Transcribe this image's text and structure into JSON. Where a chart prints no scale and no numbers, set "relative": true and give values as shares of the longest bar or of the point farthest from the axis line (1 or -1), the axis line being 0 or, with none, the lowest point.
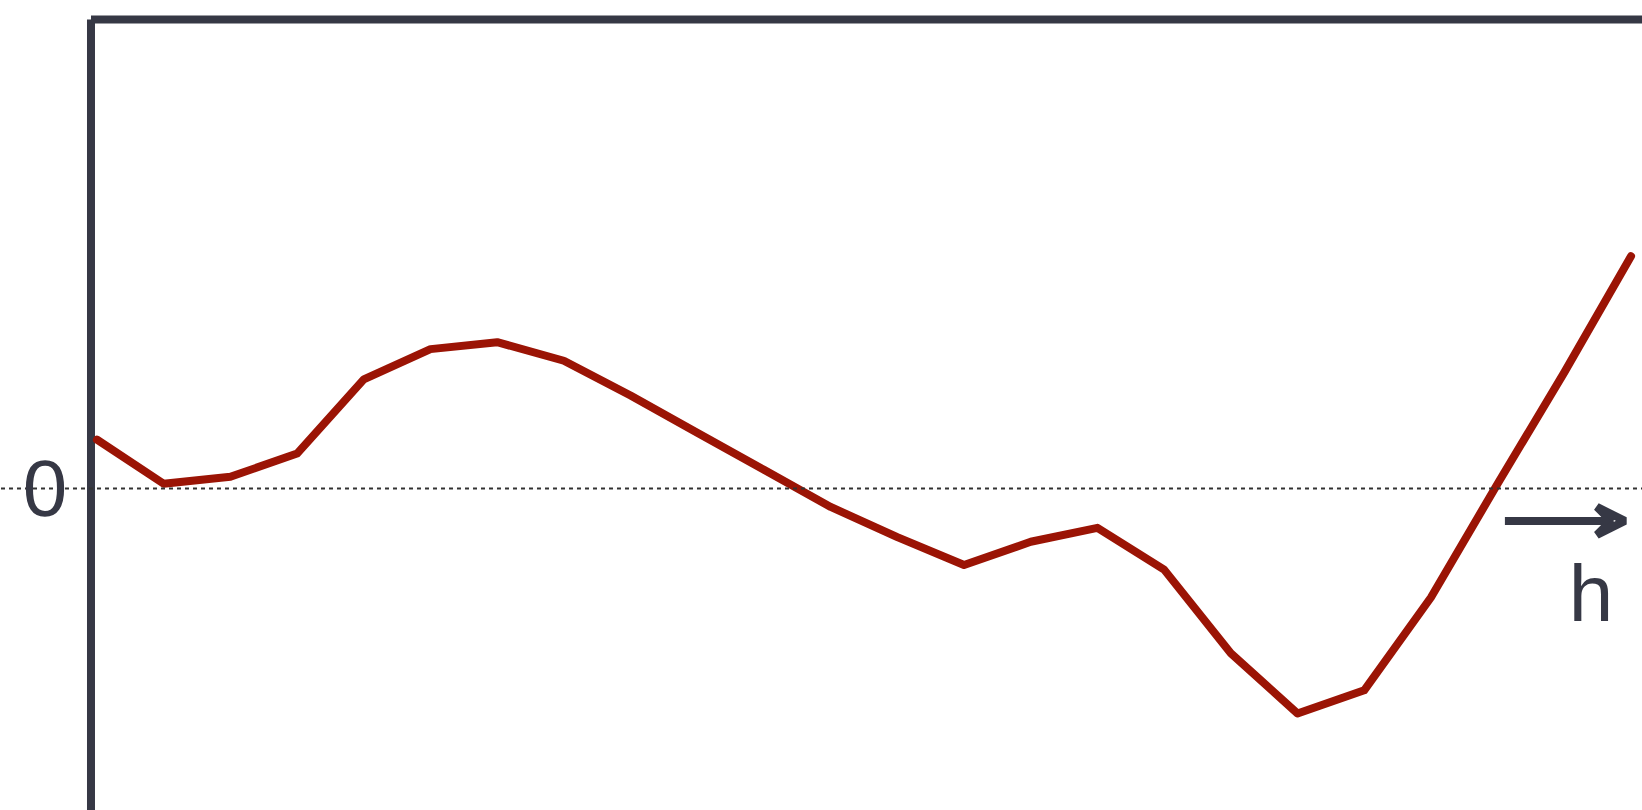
{
  "chart_data": {
    "type": "line",
    "relative": true,
    "xlabel": "h",
    "categories": [
      null,
      null,
      null,
      null,
      null,
      null,
      null,
      null,
      null,
      null,
      null,
      null,
      null,
      null,
      null,
      null,
      null,
      null,
      null,
      null,
      null,
      null,
      null,
      null
    ],
    "series": [
      {
        "color": "#9b1405",
        "values": [
          0.21,
          0.02,
          0.05,
          0.15,
          0.47,
          0.6,
          0.63,
          0.55,
          0.4,
          0.24,
          0.08,
          -0.08,
          -0.21,
          -0.33,
          -0.23,
          -0.17,
          -0.35,
          -0.71,
          -0.97,
          -0.87,
          -0.47,
          0.02,
          0.5,
          1.0
        ]
      }
    ],
    "ref_lines": [
      {
        "axis": "y",
        "value": 0,
        "label": "0",
        "color": "#333333",
        "line_style": "dashed"
      }
    ],
    "line_style": "solid"
  }
}
